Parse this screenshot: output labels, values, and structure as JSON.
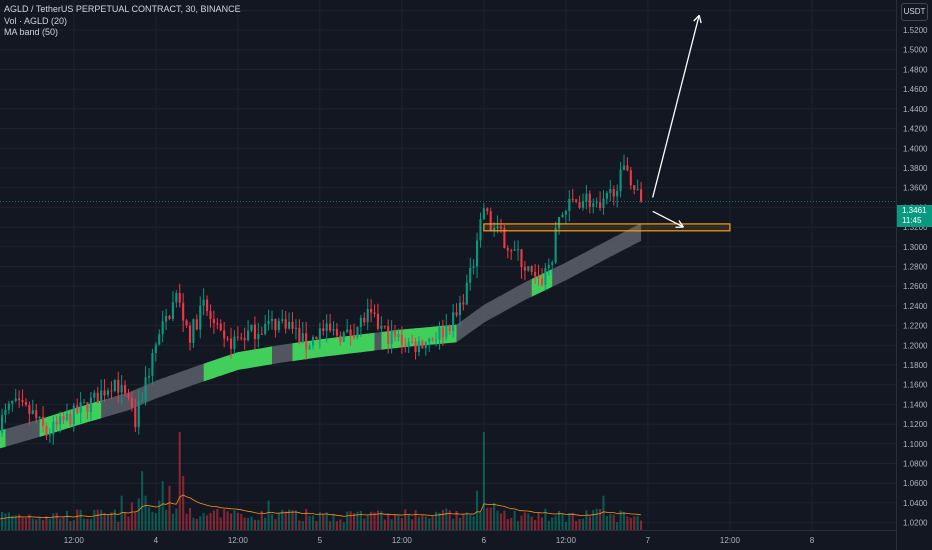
{
  "legend": {
    "symbol": "AGLD / TetherUS PERPETUAL CONTRACT, 30, BINANCE",
    "volume": "Vol · AGLD (20)",
    "ma_band": "MA band (50)"
  },
  "currency": "USDT",
  "last_price": {
    "value": "1.3461",
    "countdown": "11:45"
  },
  "colors": {
    "background": "#131722",
    "up": "#089981",
    "down": "#f23645",
    "band_gray": "#5d606b",
    "band_green": "#3fcf5a",
    "zone": "#f7a21b",
    "arrow": "#ffffff",
    "volume_ma": "#f7931a"
  },
  "chart_data": {
    "type": "candlestick",
    "title": "AGLD / TetherUS PERPETUAL CONTRACT, 30, BINANCE",
    "y_axis": {
      "ticks": [
        "1.5400",
        "1.5200",
        "1.5000",
        "1.4800",
        "1.4600",
        "1.4400",
        "1.4200",
        "1.4000",
        "1.3800",
        "1.3600",
        "1.3400",
        "1.3200",
        "1.3000",
        "1.2800",
        "1.2600",
        "1.2400",
        "1.2200",
        "1.2000",
        "1.1800",
        "1.1600",
        "1.1400",
        "1.1200",
        "1.1000",
        "1.0800",
        "1.0600",
        "1.0400",
        "1.0200"
      ],
      "range": [
        1.0125,
        1.5505
      ]
    },
    "x_axis": {
      "ticks": [
        {
          "label": "12:00",
          "t": 12
        },
        {
          "label": "4",
          "t": 24
        },
        {
          "label": "12:00",
          "t": 36
        },
        {
          "label": "5",
          "t": 48
        },
        {
          "label": "12:00",
          "t": 60
        },
        {
          "label": "6",
          "t": 72
        },
        {
          "label": "12:00",
          "t": 84
        },
        {
          "label": "7",
          "t": 96
        },
        {
          "label": "12:00",
          "t": 108
        },
        {
          "label": "8",
          "t": 120
        }
      ],
      "range": [
        1.2,
        132.3
      ]
    },
    "price_anchors": [
      {
        "t": 1,
        "p": 1.12
      },
      {
        "t": 3,
        "p": 1.14
      },
      {
        "t": 6,
        "p": 1.13
      },
      {
        "t": 8,
        "p": 1.11
      },
      {
        "t": 12,
        "p": 1.13
      },
      {
        "t": 15,
        "p": 1.145
      },
      {
        "t": 18,
        "p": 1.165
      },
      {
        "t": 20,
        "p": 1.14
      },
      {
        "t": 21,
        "p": 1.12
      },
      {
        "t": 22,
        "p": 1.15
      },
      {
        "t": 24,
        "p": 1.2
      },
      {
        "t": 27,
        "p": 1.25
      },
      {
        "t": 29,
        "p": 1.21
      },
      {
        "t": 31,
        "p": 1.24
      },
      {
        "t": 34,
        "p": 1.2
      },
      {
        "t": 37,
        "p": 1.21
      },
      {
        "t": 40,
        "p": 1.22
      },
      {
        "t": 43,
        "p": 1.225
      },
      {
        "t": 46,
        "p": 1.2
      },
      {
        "t": 48,
        "p": 1.215
      },
      {
        "t": 52,
        "p": 1.21
      },
      {
        "t": 55,
        "p": 1.23
      },
      {
        "t": 58,
        "p": 1.21
      },
      {
        "t": 62,
        "p": 1.2
      },
      {
        "t": 66,
        "p": 1.215
      },
      {
        "t": 68,
        "p": 1.23
      },
      {
        "t": 70,
        "p": 1.27
      },
      {
        "t": 71,
        "p": 1.3
      },
      {
        "t": 72,
        "p": 1.34
      },
      {
        "t": 73,
        "p": 1.32
      },
      {
        "t": 76,
        "p": 1.3
      },
      {
        "t": 78,
        "p": 1.28
      },
      {
        "t": 80,
        "p": 1.26
      },
      {
        "t": 82,
        "p": 1.29
      },
      {
        "t": 83,
        "p": 1.33
      },
      {
        "t": 85,
        "p": 1.345
      },
      {
        "t": 87,
        "p": 1.35
      },
      {
        "t": 89,
        "p": 1.335
      },
      {
        "t": 91,
        "p": 1.36
      },
      {
        "t": 93,
        "p": 1.38
      },
      {
        "t": 94,
        "p": 1.36
      },
      {
        "t": 95,
        "p": 1.346
      }
    ],
    "ma_band": {
      "width": 0.018,
      "center": [
        {
          "t": 1,
          "p": 1.104
        },
        {
          "t": 8,
          "p": 1.118
        },
        {
          "t": 14,
          "p": 1.131
        },
        {
          "t": 20,
          "p": 1.143
        },
        {
          "t": 24,
          "p": 1.155
        },
        {
          "t": 30,
          "p": 1.17
        },
        {
          "t": 36,
          "p": 1.184
        },
        {
          "t": 42,
          "p": 1.191
        },
        {
          "t": 48,
          "p": 1.197
        },
        {
          "t": 54,
          "p": 1.202
        },
        {
          "t": 60,
          "p": 1.207
        },
        {
          "t": 68,
          "p": 1.212
        },
        {
          "t": 72,
          "p": 1.232
        },
        {
          "t": 78,
          "p": 1.255
        },
        {
          "t": 84,
          "p": 1.275
        },
        {
          "t": 90,
          "p": 1.297
        },
        {
          "t": 95,
          "p": 1.315
        }
      ],
      "green_segments": [
        [
          1,
          2
        ],
        [
          7,
          16
        ],
        [
          31,
          41
        ],
        [
          44,
          56
        ],
        [
          57,
          68
        ],
        [
          79,
          82
        ]
      ]
    },
    "volume": {
      "max_height_fraction": 0.185,
      "spikes": [
        {
          "t": 22.0,
          "v": 0.6
        },
        {
          "t": 22.5,
          "v": 0.35
        },
        {
          "t": 26.0,
          "v": 0.45
        },
        {
          "t": 27.5,
          "v": 1.0
        },
        {
          "t": 28.0,
          "v": 0.55
        },
        {
          "t": 71.8,
          "v": 1.0
        },
        {
          "t": 72.2,
          "v": 0.55
        },
        {
          "t": 71.0,
          "v": 0.4
        },
        {
          "t": 89.5,
          "v": 0.35
        },
        {
          "t": 25.0,
          "v": 0.5
        },
        {
          "t": 19.0,
          "v": 0.35
        },
        {
          "t": 40.5,
          "v": 0.3
        }
      ]
    },
    "resistance_zone": {
      "t_start": 72,
      "t_end": 108,
      "p_low": 1.3162,
      "p_high": 1.3232
    },
    "annotations": [
      {
        "type": "arrow",
        "from": {
          "t": 96.7,
          "p": 1.35
        },
        "to": {
          "t": 103.5,
          "p": 1.535
        }
      },
      {
        "type": "arrow",
        "from": {
          "t": 96.7,
          "p": 1.336
        },
        "to": {
          "t": 101.2,
          "p": 1.32
        }
      }
    ],
    "last_price_line": 1.3461,
    "grid": true
  }
}
